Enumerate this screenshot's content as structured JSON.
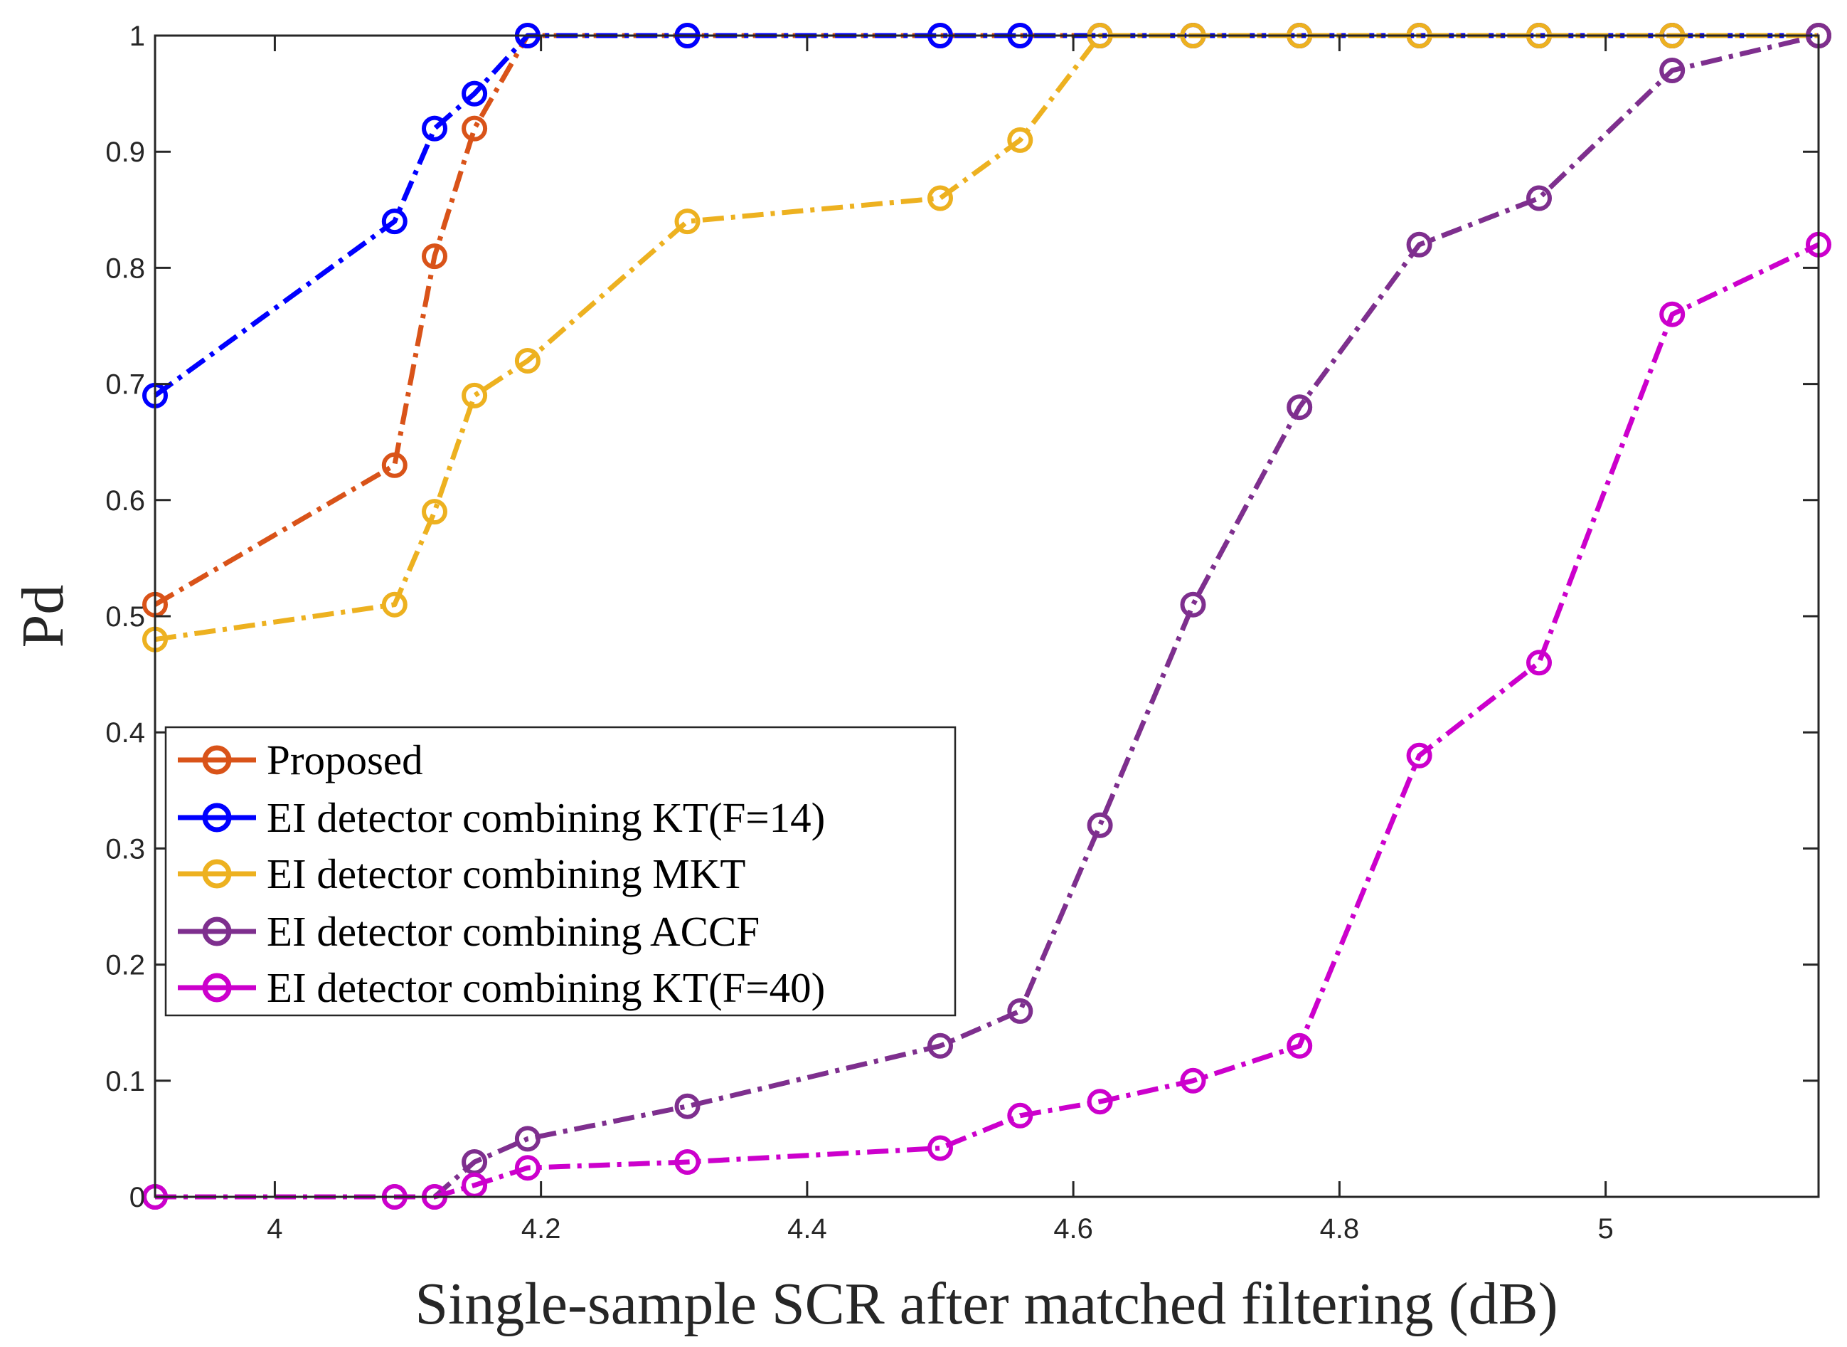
{
  "chart_data": {
    "type": "line",
    "title": "",
    "xlabel": "Single-sample SCR after matched filtering (dB)",
    "ylabel": "Pd",
    "xlim": [
      3.91,
      5.16
    ],
    "ylim": [
      0,
      1
    ],
    "xticks": [
      4,
      4.2,
      4.4,
      4.6,
      4.8,
      5
    ],
    "xtick_labels": [
      "4",
      "4.2",
      "4.4",
      "4.6",
      "4.8",
      "5"
    ],
    "yticks": [
      0,
      0.1,
      0.2,
      0.3,
      0.4,
      0.5,
      0.6,
      0.7,
      0.8,
      0.9,
      1
    ],
    "ytick_labels": [
      "0",
      "0.1",
      "0.2",
      "0.3",
      "0.4",
      "0.5",
      "0.6",
      "0.7",
      "0.8",
      "0.9",
      "1"
    ],
    "grid": false,
    "legend_position": "bottom-left",
    "line_style": "dash-dot",
    "marker": "circle",
    "series": [
      {
        "name": "Proposed",
        "color": "#D95319",
        "x": [
          3.91,
          4.09,
          4.12,
          4.15,
          4.19,
          4.31,
          4.5,
          4.56,
          4.62,
          4.69,
          4.77,
          4.86,
          4.95,
          5.05,
          5.16
        ],
        "y": [
          0.51,
          0.63,
          0.81,
          0.92,
          1,
          1,
          1,
          1,
          1,
          1,
          1,
          1,
          1,
          1,
          1
        ]
      },
      {
        "name": "EI detector combining KT(F=14)",
        "color": "#0000FF",
        "x": [
          3.91,
          4.09,
          4.12,
          4.15,
          4.19,
          4.31,
          4.5,
          4.56,
          4.62,
          4.69,
          4.77,
          4.86,
          4.95,
          5.05,
          5.16
        ],
        "y": [
          0.69,
          0.84,
          0.92,
          0.95,
          1,
          1,
          1,
          1,
          1,
          1,
          1,
          1,
          1,
          1,
          1
        ]
      },
      {
        "name": "EI detector combining MKT",
        "color": "#EDB120",
        "x": [
          3.91,
          4.09,
          4.12,
          4.15,
          4.19,
          4.31,
          4.5,
          4.56,
          4.62,
          4.69,
          4.77,
          4.86,
          4.95,
          5.05,
          5.16
        ],
        "y": [
          0.48,
          0.51,
          0.59,
          0.69,
          0.72,
          0.84,
          0.86,
          0.91,
          1,
          1,
          1,
          1,
          1,
          1,
          1
        ]
      },
      {
        "name": "EI detector combining ACCF",
        "color": "#7E2F8E",
        "x": [
          3.91,
          4.09,
          4.12,
          4.15,
          4.19,
          4.31,
          4.5,
          4.56,
          4.62,
          4.69,
          4.77,
          4.86,
          4.95,
          5.05,
          5.16
        ],
        "y": [
          0,
          0,
          0,
          0.03,
          0.05,
          0.078,
          0.13,
          0.16,
          0.32,
          0.51,
          0.68,
          0.82,
          0.86,
          0.97,
          1
        ]
      },
      {
        "name": "EI detector combining KT(F=40)",
        "color": "#CC00CC",
        "x": [
          3.91,
          4.09,
          4.12,
          4.15,
          4.19,
          4.31,
          4.5,
          4.56,
          4.62,
          4.69,
          4.77,
          4.86,
          4.95,
          5.05,
          5.16
        ],
        "y": [
          0,
          0,
          0,
          0.01,
          0.025,
          0.03,
          0.042,
          0.07,
          0.082,
          0.1,
          0.13,
          0.38,
          0.46,
          0.76,
          0.82
        ]
      }
    ]
  }
}
